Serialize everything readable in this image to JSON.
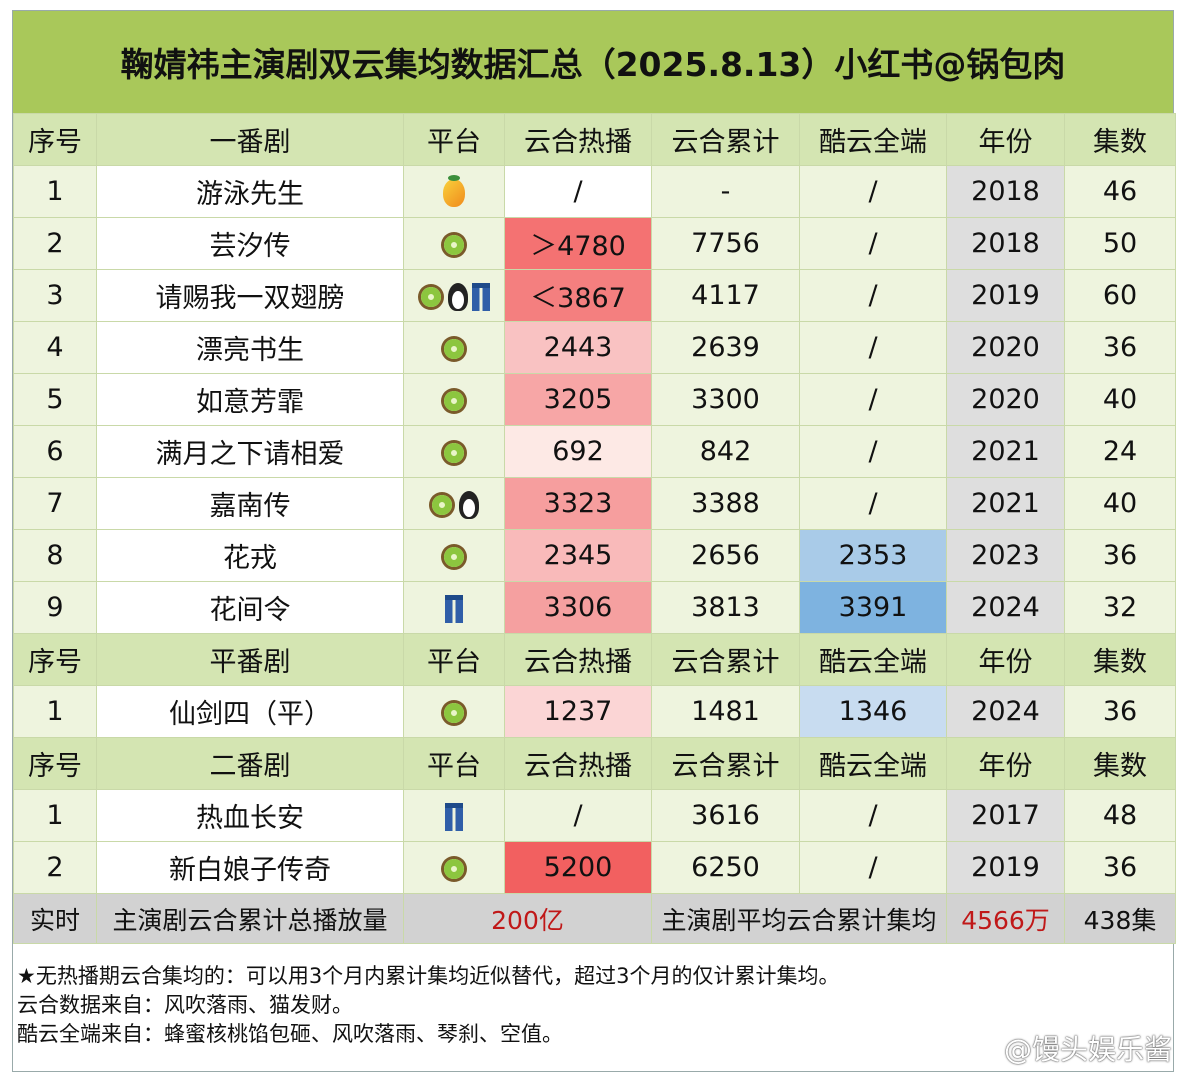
{
  "title": "鞠婧祎主演剧双云集均数据汇总（2025.8.13）小红书@锅包肉",
  "colors": {
    "title_bg": "#a9c85a",
    "header_bg": "#d4e5b2",
    "hot_strong": "#f26060",
    "kuyun_blue": "#7eb3e0",
    "highlight_red": "#c01818"
  },
  "sections": [
    {
      "header": [
        "序号",
        "一番剧",
        "平台",
        "云合热播",
        "云合累计",
        "酷云全端",
        "年份",
        "集数"
      ],
      "rows": [
        {
          "no": "1",
          "name": "游泳先生",
          "platforms": [
            "mango"
          ],
          "hot": "/",
          "cum": "-",
          "kuyun": "/",
          "year": "2018",
          "eps": "46",
          "hot_color": "#ffffff",
          "kuyun_color": ""
        },
        {
          "no": "2",
          "name": "芸汐传",
          "platforms": [
            "kiwi"
          ],
          "hot": "＞4780",
          "cum": "7756",
          "kuyun": "/",
          "year": "2018",
          "eps": "50",
          "hot_color": "#f47272",
          "kuyun_color": ""
        },
        {
          "no": "3",
          "name": "请赐我一双翅膀",
          "platforms": [
            "kiwi",
            "penguin",
            "jeans"
          ],
          "hot": "＜3867",
          "cum": "4117",
          "kuyun": "/",
          "year": "2019",
          "eps": "60",
          "hot_color": "#f47f7f",
          "kuyun_color": ""
        },
        {
          "no": "4",
          "name": "漂亮书生",
          "platforms": [
            "kiwi"
          ],
          "hot": "2443",
          "cum": "2639",
          "kuyun": "/",
          "year": "2020",
          "eps": "36",
          "hot_color": "#f9c2c2",
          "kuyun_color": ""
        },
        {
          "no": "5",
          "name": "如意芳霏",
          "platforms": [
            "kiwi"
          ],
          "hot": "3205",
          "cum": "3300",
          "kuyun": "/",
          "year": "2020",
          "eps": "40",
          "hot_color": "#f7a6a6",
          "kuyun_color": ""
        },
        {
          "no": "6",
          "name": "满月之下请相爱",
          "platforms": [
            "kiwi"
          ],
          "hot": "692",
          "cum": "842",
          "kuyun": "/",
          "year": "2021",
          "eps": "24",
          "hot_color": "#fde9e5",
          "kuyun_color": ""
        },
        {
          "no": "7",
          "name": "嘉南传",
          "platforms": [
            "kiwi",
            "penguin"
          ],
          "hot": "3323",
          "cum": "3388",
          "kuyun": "/",
          "year": "2021",
          "eps": "40",
          "hot_color": "#f69e9e",
          "kuyun_color": ""
        },
        {
          "no": "8",
          "name": "花戎",
          "platforms": [
            "kiwi"
          ],
          "hot": "2345",
          "cum": "2656",
          "kuyun": "2353",
          "year": "2023",
          "eps": "36",
          "hot_color": "#f9baba",
          "kuyun_color": "#a9cbe8"
        },
        {
          "no": "9",
          "name": "花间令",
          "platforms": [
            "jeans"
          ],
          "hot": "3306",
          "cum": "3813",
          "kuyun": "3391",
          "year": "2024",
          "eps": "32",
          "hot_color": "#f5a0a0",
          "kuyun_color": "#7eb3e0"
        }
      ]
    },
    {
      "header": [
        "序号",
        "平番剧",
        "平台",
        "云合热播",
        "云合累计",
        "酷云全端",
        "年份",
        "集数"
      ],
      "rows": [
        {
          "no": "1",
          "name": "仙剑四（平）",
          "platforms": [
            "kiwi"
          ],
          "hot": "1237",
          "cum": "1481",
          "kuyun": "1346",
          "year": "2024",
          "eps": "36",
          "hot_color": "#fbd5d5",
          "kuyun_color": "#c8dcf0"
        }
      ]
    },
    {
      "header": [
        "序号",
        "二番剧",
        "平台",
        "云合热播",
        "云合累计",
        "酷云全端",
        "年份",
        "集数"
      ],
      "rows": [
        {
          "no": "1",
          "name": "热血长安",
          "platforms": [
            "jeans"
          ],
          "hot": "/",
          "cum": "3616",
          "kuyun": "/",
          "year": "2017",
          "eps": "48",
          "hot_color": "",
          "kuyun_color": ""
        },
        {
          "no": "2",
          "name": "新白娘子传奇",
          "platforms": [
            "kiwi"
          ],
          "hot": "5200",
          "cum": "6250",
          "kuyun": "/",
          "year": "2019",
          "eps": "36",
          "hot_color": "#f26060",
          "kuyun_color": ""
        }
      ]
    }
  ],
  "summary": {
    "label": "实时",
    "total_label": "主演剧云合累计总播放量",
    "total_value": "200亿",
    "avg_label": "主演剧平均云合累计集均",
    "avg_value": "4566万",
    "episodes": "438集"
  },
  "notes": [
    "★无热播期云合集均的：可以用3个月内累计集均近似替代，超过3个月的仅计累计集均。",
    "云合数据来自：风吹落雨、猫发财。",
    "酷云全端来自：蜂蜜核桃馅包砸、风吹落雨、琴刹、空值。"
  ],
  "watermark": "@馒头娱乐酱"
}
